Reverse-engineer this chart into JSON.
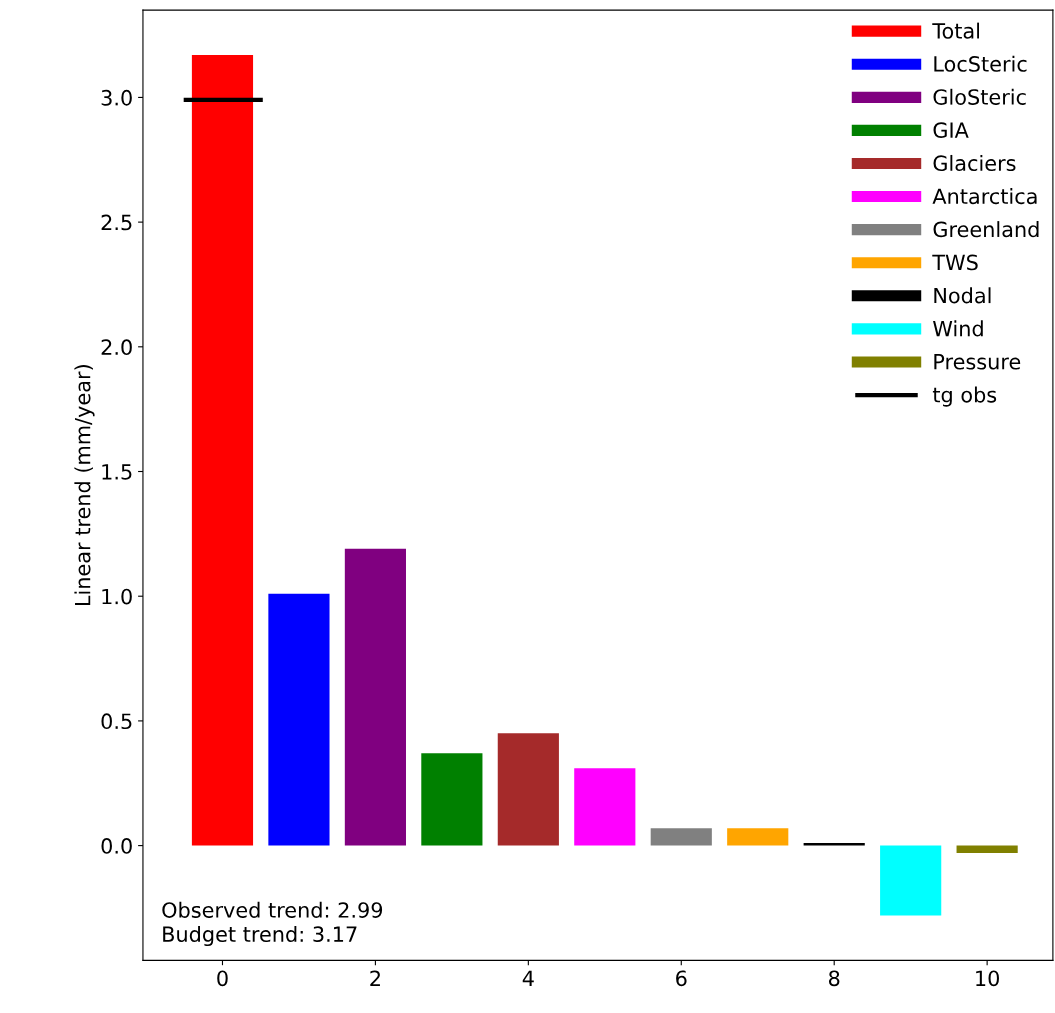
{
  "chart_data": {
    "type": "bar",
    "ylabel": "Linear trend (mm/year)",
    "xlim": [
      -1.04,
      10.86
    ],
    "xticks": [
      0,
      2,
      4,
      6,
      8,
      10
    ],
    "ylim": [
      -0.46,
      3.35
    ],
    "yticks": [
      {
        "value": 0,
        "label": "0.0"
      },
      0.5,
      {
        "value": 1,
        "label": "1.0"
      },
      1.5,
      {
        "value": 2,
        "label": "2.0"
      },
      2.5,
      {
        "value": 3,
        "label": "3.0"
      }
    ],
    "series": [
      {
        "name": "Total",
        "color": "#ff0000",
        "x": [
          0
        ],
        "values": [
          3.17
        ]
      },
      {
        "name": "LocSteric",
        "color": "#0000ff",
        "x": [
          1
        ],
        "values": [
          1.01
        ]
      },
      {
        "name": "GloSteric",
        "color": "#800080",
        "x": [
          2
        ],
        "values": [
          1.19
        ]
      },
      {
        "name": "GIA",
        "color": "#008000",
        "x": [
          3
        ],
        "values": [
          0.37
        ]
      },
      {
        "name": "Glaciers",
        "color": "#a52a2a",
        "x": [
          4
        ],
        "values": [
          0.45
        ]
      },
      {
        "name": "Antarctica",
        "color": "#ff00ff",
        "x": [
          5
        ],
        "values": [
          0.31
        ]
      },
      {
        "name": "Greenland",
        "color": "#808080",
        "x": [
          6
        ],
        "values": [
          0.07
        ]
      },
      {
        "name": "TWS",
        "color": "#ffa500",
        "x": [
          7
        ],
        "values": [
          0.07
        ]
      },
      {
        "name": "Nodal",
        "color": "#000000",
        "x": [
          8
        ],
        "values": [
          0.01
        ]
      },
      {
        "name": "Wind",
        "color": "#00ffff",
        "x": [
          9
        ],
        "values": [
          -0.28
        ]
      },
      {
        "name": "Pressure",
        "color": "#808000",
        "x": [
          10
        ],
        "values": [
          -0.03
        ]
      },
      {
        "name": "tg obs",
        "type": "line",
        "color": "#000000",
        "x": [
          -0.48,
          0.5
        ],
        "values": [
          2.99,
          2.99
        ]
      }
    ],
    "annotations": [
      "Observed trend: 2.99\nBudget trend: 3.17"
    ],
    "legend": "top right",
    "grid": false
  }
}
